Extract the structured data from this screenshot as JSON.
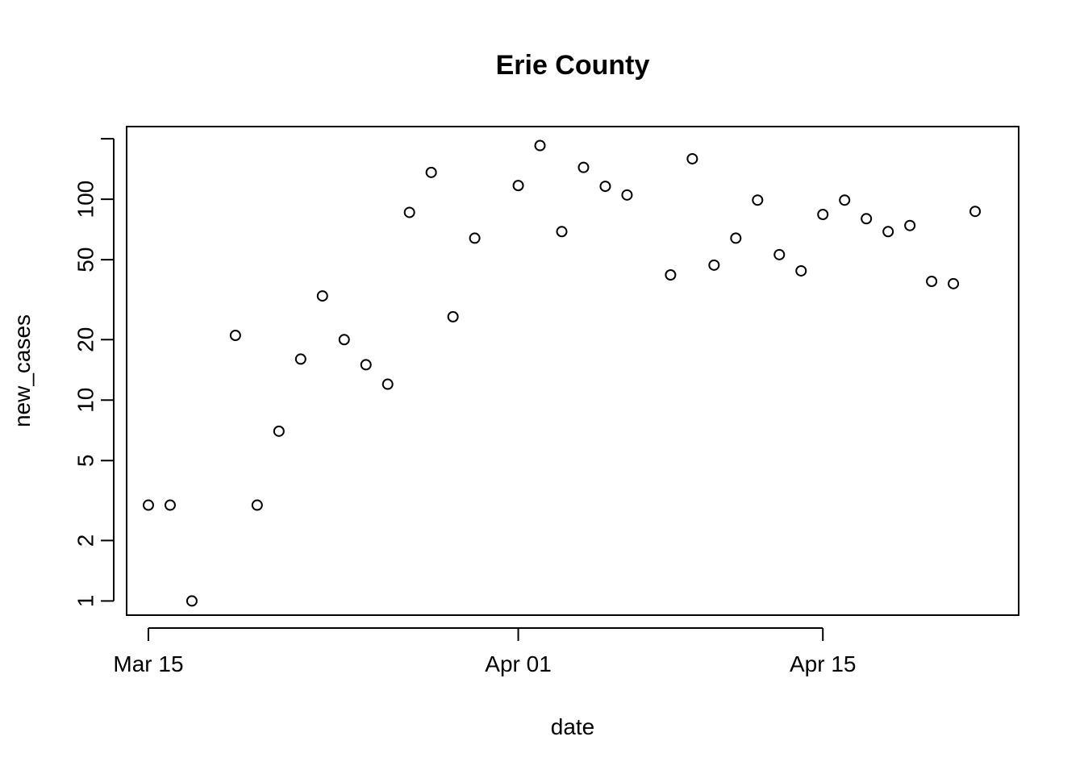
{
  "chart_data": {
    "type": "scatter",
    "title": "Erie County",
    "xlabel": "date",
    "ylabel": "new_cases",
    "x_scale": "date",
    "y_scale": "log",
    "xlim": [
      "2020-03-14",
      "2020-04-24"
    ],
    "ylim": [
      0.85,
      230
    ],
    "grid": false,
    "legend": "none",
    "x_ticks": [
      {
        "value": "2020-03-15",
        "label": "Mar 15"
      },
      {
        "value": "2020-04-01",
        "label": "Apr 01"
      },
      {
        "value": "2020-04-15",
        "label": "Apr 15"
      }
    ],
    "y_ticks": [
      {
        "value": 1,
        "label": "1"
      },
      {
        "value": 2,
        "label": "2"
      },
      {
        "value": 5,
        "label": "5"
      },
      {
        "value": 10,
        "label": "10"
      },
      {
        "value": 20,
        "label": "20"
      },
      {
        "value": 50,
        "label": "50"
      },
      {
        "value": 100,
        "label": "100"
      },
      {
        "value": 200,
        "label": ""
      }
    ],
    "points": [
      {
        "x": "2020-03-15",
        "y": 3
      },
      {
        "x": "2020-03-16",
        "y": 3
      },
      {
        "x": "2020-03-17",
        "y": 1
      },
      {
        "x": "2020-03-19",
        "y": 21
      },
      {
        "x": "2020-03-20",
        "y": 3
      },
      {
        "x": "2020-03-21",
        "y": 7
      },
      {
        "x": "2020-03-22",
        "y": 16
      },
      {
        "x": "2020-03-23",
        "y": 33
      },
      {
        "x": "2020-03-24",
        "y": 20
      },
      {
        "x": "2020-03-25",
        "y": 15
      },
      {
        "x": "2020-03-26",
        "y": 12
      },
      {
        "x": "2020-03-27",
        "y": 86
      },
      {
        "x": "2020-03-28",
        "y": 136
      },
      {
        "x": "2020-03-29",
        "y": 26
      },
      {
        "x": "2020-03-30",
        "y": 64
      },
      {
        "x": "2020-04-01",
        "y": 117
      },
      {
        "x": "2020-04-02",
        "y": 185
      },
      {
        "x": "2020-04-03",
        "y": 69
      },
      {
        "x": "2020-04-04",
        "y": 144
      },
      {
        "x": "2020-04-05",
        "y": 116
      },
      {
        "x": "2020-04-06",
        "y": 105
      },
      {
        "x": "2020-04-08",
        "y": 42
      },
      {
        "x": "2020-04-09",
        "y": 159
      },
      {
        "x": "2020-04-10",
        "y": 47
      },
      {
        "x": "2020-04-11",
        "y": 64
      },
      {
        "x": "2020-04-12",
        "y": 99
      },
      {
        "x": "2020-04-13",
        "y": 53
      },
      {
        "x": "2020-04-14",
        "y": 44
      },
      {
        "x": "2020-04-15",
        "y": 84
      },
      {
        "x": "2020-04-16",
        "y": 99
      },
      {
        "x": "2020-04-17",
        "y": 80
      },
      {
        "x": "2020-04-18",
        "y": 69
      },
      {
        "x": "2020-04-19",
        "y": 74
      },
      {
        "x": "2020-04-20",
        "y": 39
      },
      {
        "x": "2020-04-21",
        "y": 38
      },
      {
        "x": "2020-04-22",
        "y": 87
      }
    ],
    "colors": {
      "marker_stroke": "#000000",
      "axis": "#000000",
      "background": "#ffffff"
    }
  }
}
